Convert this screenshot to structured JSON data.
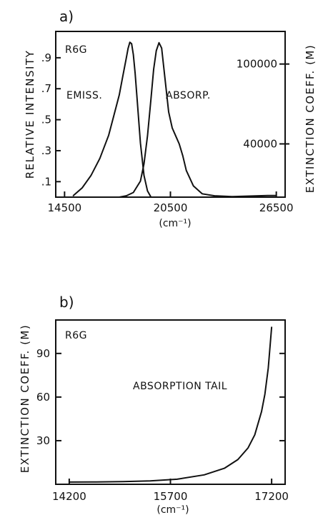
{
  "chart_data": [
    {
      "panel_label": "a)",
      "type": "line",
      "annotations": {
        "sample": "R6G",
        "emission": "EMISS.",
        "absorption": "ABSORP."
      },
      "xlabel": "(cm⁻¹)",
      "ylabel_left": "RELATIVE INTENSITY",
      "ylabel_right": "EXTINCTION COEFF. (M)",
      "xlim": [
        14000,
        27000
      ],
      "ylim_left": [
        0,
        1.07
      ],
      "ylim_right": [
        0,
        124500
      ],
      "x_ticks": [
        14500,
        20500,
        26500
      ],
      "x_tick_labels": [
        "14500",
        "20500",
        "26500"
      ],
      "y_left_ticks": [
        0.1,
        0.3,
        0.5,
        0.7,
        0.9
      ],
      "y_left_tick_labels": [
        ".1",
        ".3",
        ".5",
        ".7",
        ".9"
      ],
      "y_right_ticks": [
        40000,
        100000
      ],
      "y_right_tick_labels": [
        "40000",
        "100000"
      ],
      "series": [
        {
          "axis": "left",
          "x": [
            15000,
            15500,
            16000,
            16500,
            17000,
            17300,
            17600,
            17800,
            18000,
            18100,
            18200,
            18300,
            18400,
            18500,
            18600,
            18800,
            19000,
            19200,
            19400
          ],
          "values": [
            0.01,
            0.06,
            0.14,
            0.25,
            0.4,
            0.53,
            0.66,
            0.78,
            0.9,
            0.96,
            1.0,
            0.99,
            0.92,
            0.8,
            0.65,
            0.35,
            0.14,
            0.04,
            0.0
          ]
        },
        {
          "axis": "right",
          "x": [
            17600,
            18000,
            18400,
            18800,
            19000,
            19200,
            19400,
            19550,
            19700,
            19850,
            20000,
            20200,
            20400,
            20600,
            20800,
            21000,
            21200,
            21400,
            21800,
            22300,
            23000,
            24000,
            25000,
            26000,
            26500
          ],
          "values": [
            0,
            1000,
            3500,
            12000,
            25000,
            46000,
            74000,
            96000,
            110000,
            116000,
            112000,
            88000,
            64000,
            52000,
            46000,
            40000,
            31000,
            20000,
            8500,
            2500,
            1000,
            400,
            800,
            1200,
            1200
          ]
        }
      ]
    },
    {
      "panel_label": "b)",
      "type": "line",
      "annotations": {
        "sample": "R6G",
        "tail": "ABSORPTION TAIL"
      },
      "xlabel": "(cm⁻¹)",
      "ylabel": "EXTINCTION COEFF. (M)",
      "xlim": [
        14000,
        17400
      ],
      "ylim": [
        0,
        113
      ],
      "x_ticks": [
        14200,
        15700,
        17200
      ],
      "x_tick_labels": [
        "14200",
        "15700",
        "17200"
      ],
      "y_ticks": [
        30,
        60,
        90
      ],
      "y_tick_labels": [
        "30",
        "60",
        "90"
      ],
      "series": [
        {
          "x": [
            14200,
            14600,
            15000,
            15400,
            15800,
            16200,
            16500,
            16700,
            16850,
            16950,
            17050,
            17100,
            17150,
            17200
          ],
          "values": [
            1.5,
            1.6,
            1.8,
            2.3,
            3.5,
            6.5,
            11,
            17,
            25,
            34,
            50,
            62,
            80,
            108
          ]
        }
      ]
    }
  ]
}
